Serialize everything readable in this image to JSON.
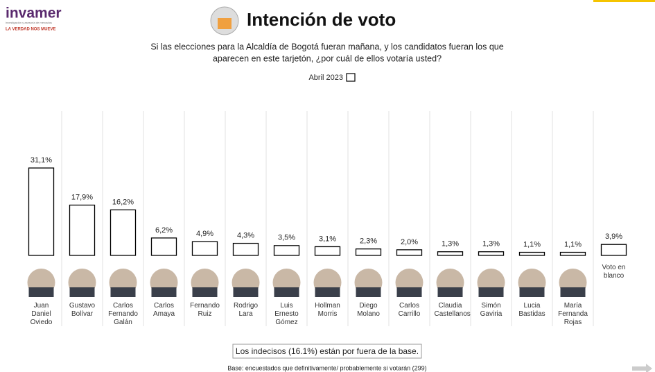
{
  "logo": {
    "name": "invamer",
    "tagline": "LA VERDAD NOS MUEVE",
    "small": "investigación y asesoría de mercados"
  },
  "chart_data": {
    "type": "bar",
    "title": "Intención de voto",
    "subtitle": [
      "Si las elecciones para la Alcaldía de Bogotá fueran mañana, y los candidatos fueran los que",
      "aparecen en este tarjetón, ¿por cuál de ellos votaría usted?"
    ],
    "categories": [
      "Juan Daniel Oviedo",
      "Gustavo Bolívar",
      "Carlos Fernando Galán",
      "Carlos Amaya",
      "Fernando Ruiz",
      "Rodrigo Lara",
      "Luis Ernesto Gómez",
      "Hollman Morris",
      "Diego Molano",
      "Carlos Carrillo",
      "Claudia Castellanos",
      "Simón Gaviria",
      "Lucia Bastidas",
      "María Fernanda Rojas",
      "Voto en blanco"
    ],
    "series": [
      {
        "name": "Abril 2023",
        "color": "#ffffff",
        "values": [
          31.1,
          17.9,
          16.2,
          6.2,
          4.9,
          4.3,
          3.5,
          3.1,
          2.3,
          2.0,
          1.3,
          1.3,
          1.1,
          1.1,
          3.9
        ],
        "value_labels": [
          "31,1%",
          "17,9%",
          "16,2%",
          "6,2%",
          "4,9%",
          "4,3%",
          "3,5%",
          "3,1%",
          "2,3%",
          "2,0%",
          "1,3%",
          "1,3%",
          "1,1%",
          "1,1%",
          "3,9%"
        ]
      }
    ],
    "note": "Los indecisos (16.1%) están por fuera de la base.",
    "footer": "Base: encuestados que definitivamente/ probablemente si votarán (299)"
  }
}
